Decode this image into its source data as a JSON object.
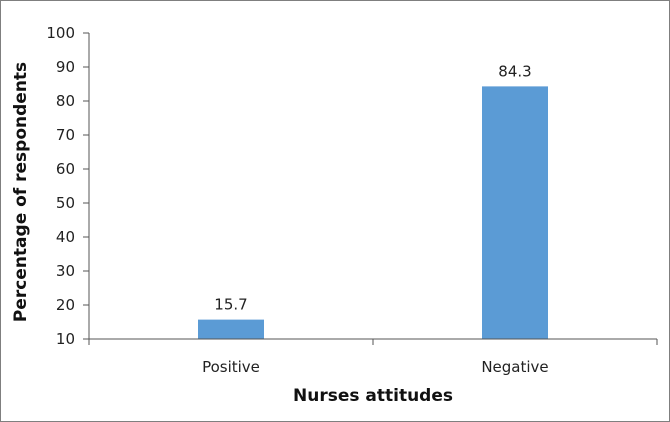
{
  "chart_data": {
    "type": "bar",
    "title": "",
    "categories": [
      "Positive",
      "Negative"
    ],
    "values": [
      15.7,
      84.3
    ],
    "data_labels": [
      "15.7",
      "84.3"
    ],
    "xlabel": "Nurses attitudes",
    "ylabel": "Percentage of respondents",
    "ylim": [
      10,
      100
    ],
    "yticks": [
      10,
      20,
      30,
      40,
      50,
      60,
      70,
      80,
      90,
      100
    ],
    "grid": false,
    "legend": "none",
    "bar_color": "#5b9bd5"
  }
}
